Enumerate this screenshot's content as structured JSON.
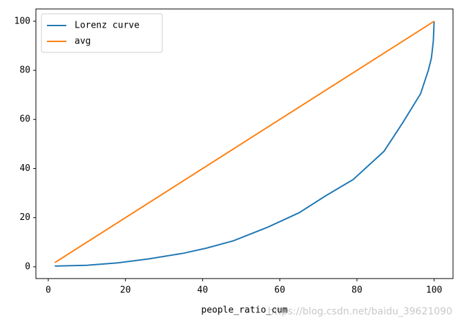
{
  "chart_data": {
    "type": "line",
    "x_label": "people_ratio_cum",
    "watermark": "https://blog.csdn.net/baidu_39621090",
    "series": [
      {
        "name": "Lorenz curve",
        "color": "#1f77b4",
        "x": [
          1.7,
          10,
          18,
          26,
          35,
          41,
          48,
          57,
          65,
          72,
          79,
          87,
          92,
          96.5,
          98.5,
          99.3,
          99.8,
          100
        ],
        "values": [
          0.3,
          0.6,
          1.6,
          3.2,
          5.5,
          7.6,
          10.6,
          16.2,
          22,
          29,
          35.5,
          47,
          59,
          70.5,
          80,
          85,
          92,
          100
        ]
      },
      {
        "name": "avg",
        "color": "#ff7f0e",
        "x": [
          1.7,
          100
        ],
        "values": [
          1.7,
          100
        ]
      }
    ],
    "xlim": [
      -3.2,
      104.9
    ],
    "ylim": [
      -4.8,
      105
    ],
    "xticks": [
      0,
      20,
      40,
      60,
      80,
      100
    ],
    "yticks": [
      0,
      20,
      40,
      60,
      80,
      100
    ],
    "legend": "upper left",
    "grid": false
  }
}
